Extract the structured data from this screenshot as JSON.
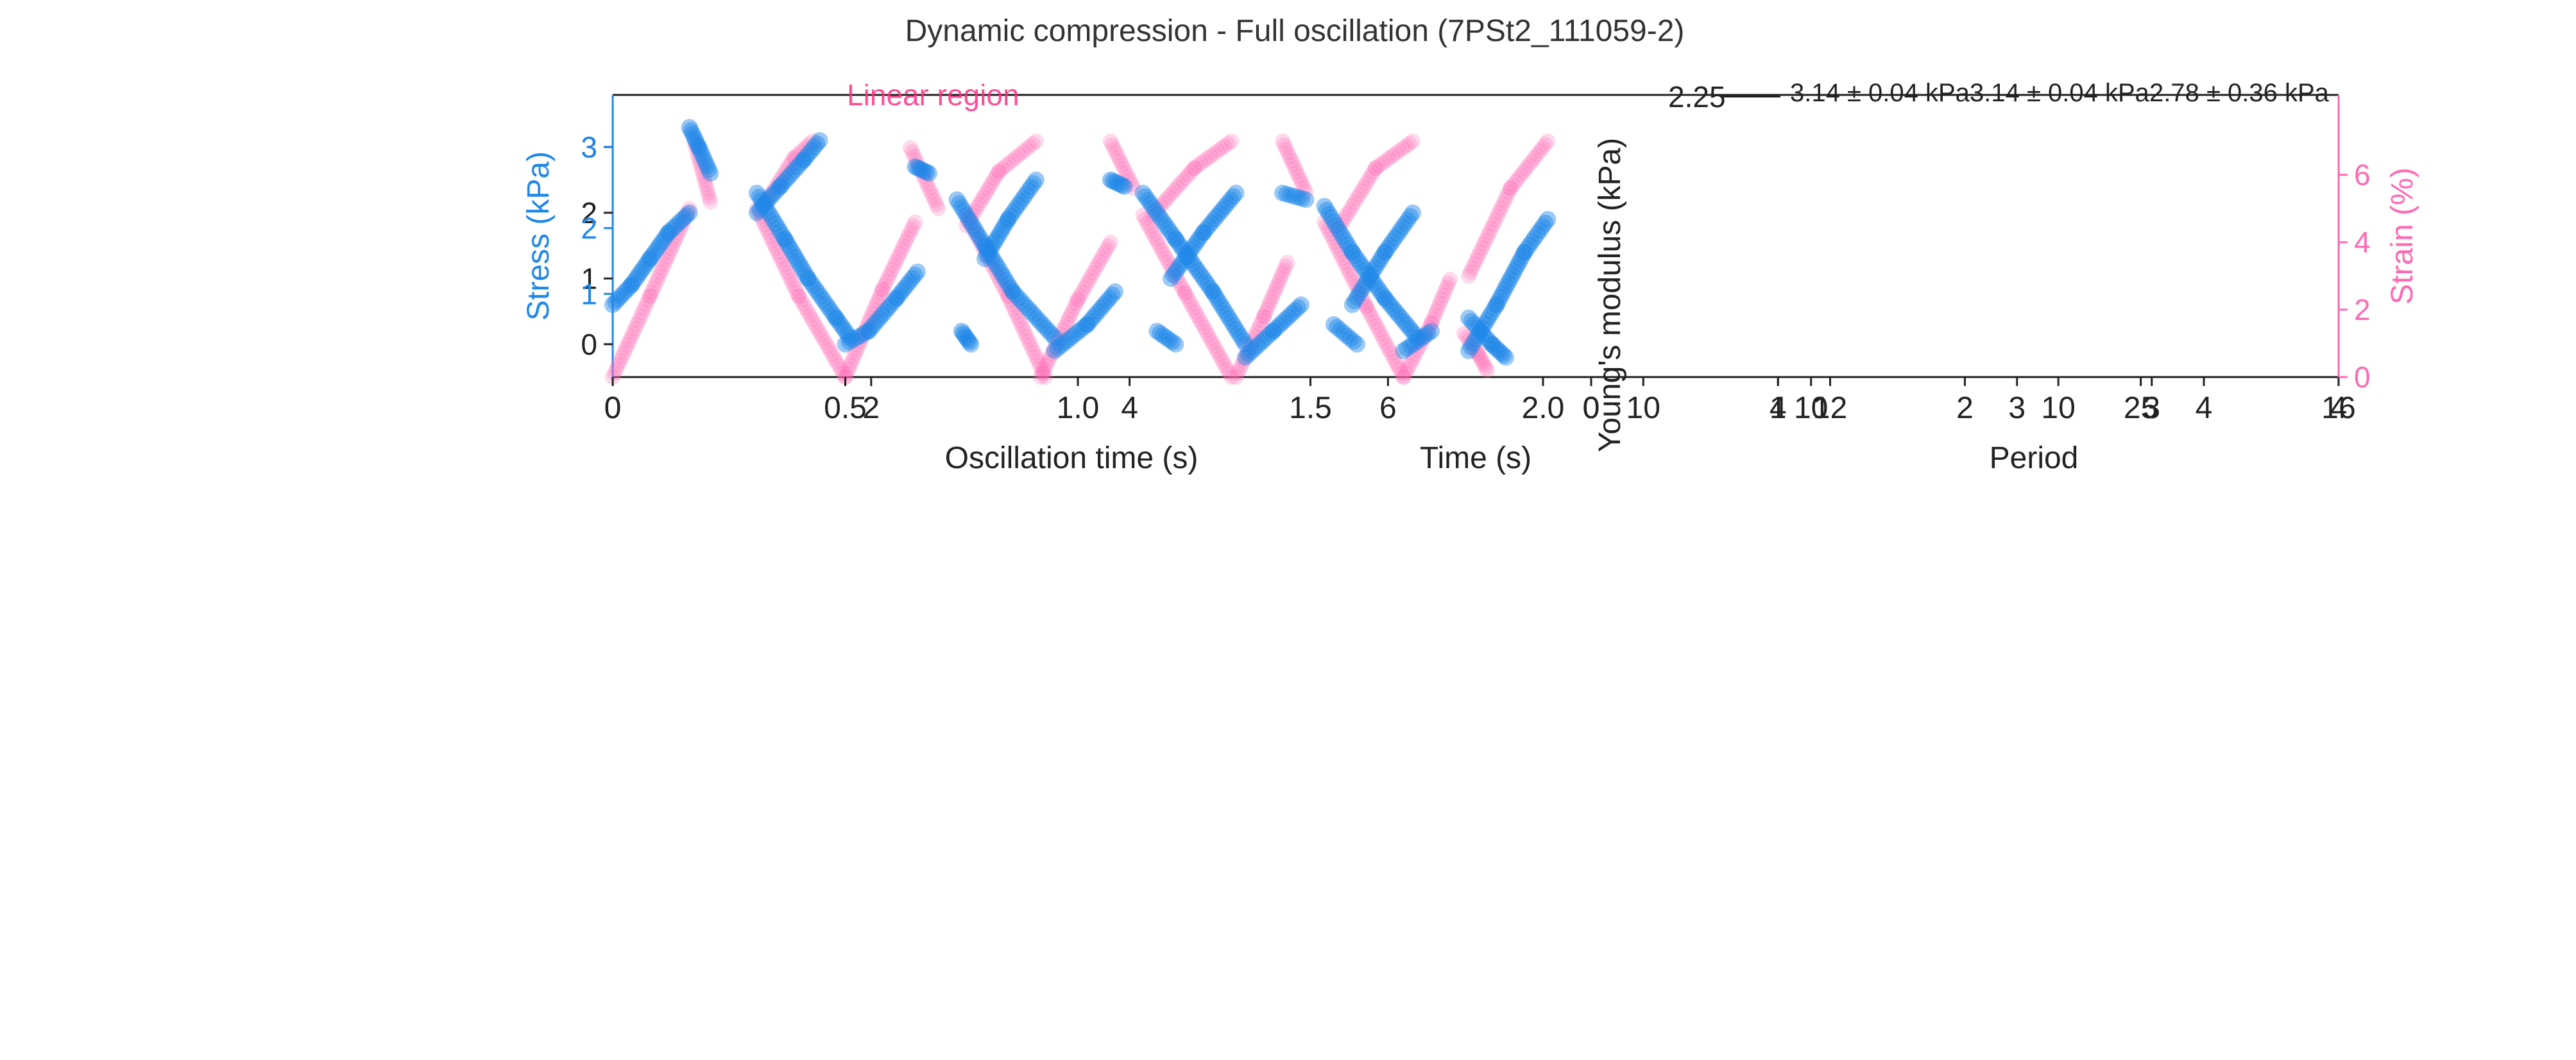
{
  "figure": {
    "suptitle": "Dynamic compression - Full oscillation (7PSt2_111059-2)"
  },
  "colors": {
    "stress": "#1f87e8",
    "strain": "#ff69b4",
    "axis": "#222222",
    "legend_strain": "#ff2e84"
  },
  "chart_data": [
    {
      "id": "oscillation",
      "type": "scatter",
      "xlabel": "Oscillation time (s)",
      "xlim": [
        0,
        2.0
      ],
      "xticks": [
        0,
        0.5,
        1.0,
        1.5,
        2.0
      ],
      "xtick_labels": [
        "0",
        "0.5",
        "1.0",
        "1.5",
        "2.0"
      ],
      "ylabel": "Stress (kPa)",
      "ylim": [
        -0.5,
        3.5
      ],
      "yticks": [
        0,
        1,
        2,
        3
      ],
      "yticks_secondary": [
        1,
        2,
        3
      ],
      "ylabel_right": "Strain (%)",
      "ylim_right": [
        0,
        7.8
      ],
      "yticks_right": [
        0,
        2,
        4,
        6
      ],
      "legend_label": "Linear region",
      "series": [
        {
          "axis": "left",
          "segments": [
            {
              "x": [
                0.0,
                0.04,
                0.08,
                0.12,
                0.165
              ],
              "y": [
                0.6,
                0.9,
                1.3,
                1.7,
                2.0
              ]
            },
            {
              "x": [
                0.165,
                0.185,
                0.21
              ],
              "y": [
                3.3,
                3.0,
                2.6
              ]
            },
            {
              "x": [
                0.31,
                0.37,
                0.42,
                0.48,
                0.51
              ],
              "y": [
                2.3,
                1.6,
                1.0,
                0.4,
                0.1
              ]
            },
            {
              "x": [
                0.31,
                0.36,
                0.41,
                0.445
              ],
              "y": [
                2.0,
                2.4,
                2.8,
                3.1
              ]
            },
            {
              "x": [
                0.5,
                0.55,
                0.61,
                0.655
              ],
              "y": [
                0.0,
                0.2,
                0.7,
                1.1
              ]
            },
            {
              "x": [
                0.65,
                0.68
              ],
              "y": [
                2.7,
                2.6
              ]
            },
            {
              "x": [
                0.74,
                0.8,
                0.86,
                0.95
              ],
              "y": [
                2.2,
                1.5,
                0.8,
                0.1
              ]
            },
            {
              "x": [
                0.8,
                0.85,
                0.91
              ],
              "y": [
                1.3,
                1.9,
                2.5
              ]
            },
            {
              "x": [
                0.75,
                0.77
              ],
              "y": [
                0.2,
                0.0
              ]
            },
            {
              "x": [
                0.95,
                1.02,
                1.08
              ],
              "y": [
                -0.1,
                0.3,
                0.8
              ]
            },
            {
              "x": [
                1.07,
                1.1
              ],
              "y": [
                2.5,
                2.4
              ]
            },
            {
              "x": [
                1.14,
                1.21,
                1.29,
                1.36
              ],
              "y": [
                2.3,
                1.6,
                0.8,
                0.0
              ]
            },
            {
              "x": [
                1.2,
                1.27,
                1.34
              ],
              "y": [
                1.0,
                1.7,
                2.3
              ]
            },
            {
              "x": [
                1.17,
                1.21
              ],
              "y": [
                0.2,
                0.0
              ]
            },
            {
              "x": [
                1.36,
                1.42,
                1.48
              ],
              "y": [
                -0.2,
                0.2,
                0.6
              ]
            },
            {
              "x": [
                1.44,
                1.49
              ],
              "y": [
                2.3,
                2.2
              ]
            },
            {
              "x": [
                1.53,
                1.59,
                1.66,
                1.73
              ],
              "y": [
                2.1,
                1.4,
                0.7,
                0.1
              ]
            },
            {
              "x": [
                1.59,
                1.66,
                1.72
              ],
              "y": [
                0.6,
                1.4,
                2.0
              ]
            },
            {
              "x": [
                1.55,
                1.6
              ],
              "y": [
                0.3,
                0.0
              ]
            },
            {
              "x": [
                1.7,
                1.76
              ],
              "y": [
                -0.1,
                0.2
              ]
            },
            {
              "x": [
                1.84,
                1.89,
                1.92
              ],
              "y": [
                0.4,
                0.0,
                -0.2
              ]
            },
            {
              "x": [
                1.84,
                1.9,
                1.96,
                2.01
              ],
              "y": [
                -0.1,
                0.6,
                1.4,
                1.9
              ]
            }
          ]
        },
        {
          "axis": "right",
          "segments": [
            {
              "x": [
                0.0,
                0.08,
                0.165
              ],
              "y": [
                0.0,
                2.4,
                5.0
              ]
            },
            {
              "x": [
                0.175,
                0.21
              ],
              "y": [
                7.0,
                5.2
              ]
            },
            {
              "x": [
                0.31,
                0.4,
                0.5
              ],
              "y": [
                5.0,
                2.4,
                0.0
              ]
            },
            {
              "x": [
                0.33,
                0.39,
                0.43
              ],
              "y": [
                5.2,
                6.5,
                7.0
              ]
            },
            {
              "x": [
                0.5,
                0.58,
                0.65
              ],
              "y": [
                0.0,
                2.6,
                4.6
              ]
            },
            {
              "x": [
                0.64,
                0.7
              ],
              "y": [
                6.8,
                5.0
              ]
            },
            {
              "x": [
                0.76,
                0.85,
                0.93
              ],
              "y": [
                4.8,
                2.4,
                0.0
              ]
            },
            {
              "x": [
                0.76,
                0.83,
                0.91
              ],
              "y": [
                4.5,
                6.1,
                7.0
              ]
            },
            {
              "x": [
                0.92,
                1.0,
                1.07
              ],
              "y": [
                0.0,
                2.3,
                4.0
              ]
            },
            {
              "x": [
                1.07,
                1.12
              ],
              "y": [
                7.0,
                5.6
              ]
            },
            {
              "x": [
                1.14,
                1.23,
                1.33
              ],
              "y": [
                4.8,
                2.5,
                0.0
              ]
            },
            {
              "x": [
                1.16,
                1.25,
                1.33
              ],
              "y": [
                4.8,
                6.2,
                7.0
              ]
            },
            {
              "x": [
                1.34,
                1.4,
                1.45
              ],
              "y": [
                0.0,
                1.8,
                3.4
              ]
            },
            {
              "x": [
                1.44,
                1.49
              ],
              "y": [
                7.0,
                5.5
              ]
            },
            {
              "x": [
                1.53,
                1.62,
                1.7
              ],
              "y": [
                4.6,
                2.1,
                0.0
              ]
            },
            {
              "x": [
                1.56,
                1.64,
                1.72
              ],
              "y": [
                4.4,
                6.2,
                7.0
              ]
            },
            {
              "x": [
                1.7,
                1.76,
                1.8
              ],
              "y": [
                0.0,
                1.6,
                2.9
              ]
            },
            {
              "x": [
                1.83,
                1.86,
                1.88
              ],
              "y": [
                1.3,
                0.7,
                0.2
              ]
            },
            {
              "x": [
                1.84,
                1.93,
                2.01
              ],
              "y": [
                3.0,
                5.6,
                7.0
              ]
            }
          ]
        }
      ]
    },
    {
      "id": "time-overlay",
      "type": "scatter",
      "xlabel": "Time (s)",
      "xticks": [
        0,
        2,
        4,
        6
      ],
      "xtick_labels": [
        "0",
        "2",
        "4",
        "6"
      ],
      "xlim": [
        0,
        7.2
      ]
    },
    {
      "id": "youngs-modulus",
      "type": "line",
      "xlabel": "Period",
      "ylabel": "Young's modulus (kPa)",
      "xticks": [
        0,
        1,
        2,
        3,
        4
      ],
      "xtick_labels": [
        "0",
        "1",
        "2",
        "3",
        "4"
      ],
      "xlim": [
        0,
        4
      ],
      "xticks_b": [
        1,
        2,
        3,
        4
      ],
      "xtick_labels_b": [
        "10",
        "12",
        "3",
        "4"
      ],
      "xticks_c": [
        0,
        10,
        25
      ],
      "xtick_labels_c": [
        "0",
        "10",
        "25"
      ],
      "xlim_c": [
        0,
        34
      ],
      "xticks_d": [
        0,
        4,
        10,
        16
      ],
      "xtick_labels_d": [
        "0",
        "4",
        "10",
        "16"
      ],
      "xlim_d": [
        0,
        16
      ],
      "ytick_label": "2.25",
      "annotations": [
        "3.14 ± 0.04 kPa",
        "3.14 ± 0.04 kPa",
        "2.78 ± 0.36 kPa"
      ]
    }
  ]
}
